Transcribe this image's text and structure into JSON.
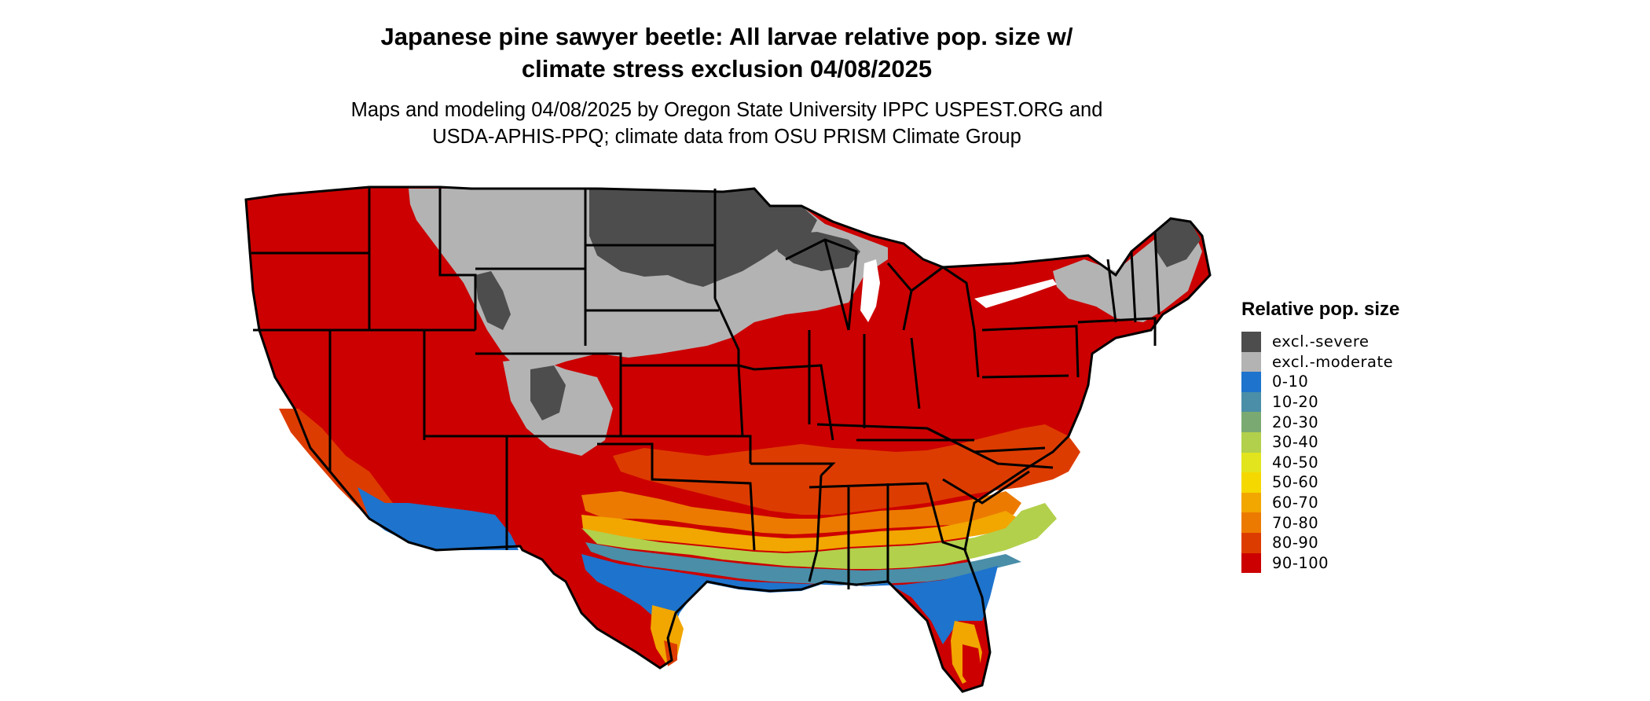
{
  "title": {
    "line1": "Japanese pine sawyer beetle: All larvae relative pop. size w/",
    "line2": "climate stress exclusion 04/08/2025"
  },
  "subtitle": {
    "line1": "Maps and modeling 04/08/2025 by Oregon State University IPPC USPEST.ORG and",
    "line2": "USDA-APHIS-PPQ; climate data from OSU PRISM Climate Group"
  },
  "legend": {
    "title": "Relative pop. size",
    "items": [
      {
        "label": "excl.-severe",
        "color": "#4d4d4d"
      },
      {
        "label": "excl.-moderate",
        "color": "#b3b3b3"
      },
      {
        "label": "0-10",
        "color": "#1e73cc"
      },
      {
        "label": "10-20",
        "color": "#4a8ea8"
      },
      {
        "label": "20-30",
        "color": "#7aaa72"
      },
      {
        "label": "30-40",
        "color": "#b2d04b"
      },
      {
        "label": "40-50",
        "color": "#e2e41e"
      },
      {
        "label": "50-60",
        "color": "#f5d800"
      },
      {
        "label": "60-70",
        "color": "#f2a600"
      },
      {
        "label": "70-80",
        "color": "#ec7a00"
      },
      {
        "label": "80-90",
        "color": "#dd3c00"
      },
      {
        "label": "90-100",
        "color": "#cc0000"
      }
    ]
  }
}
